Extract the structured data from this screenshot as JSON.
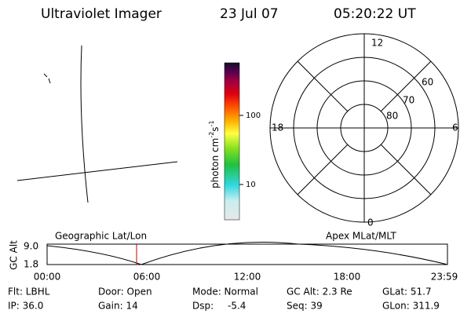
{
  "header": {
    "instrument": "Ultraviolet Imager",
    "date": "23 Jul 07",
    "time": "05:20:22 UT"
  },
  "colorbar": {
    "label_main": "photon cm",
    "exp1": "-2",
    "label_unit": "s",
    "exp2": "-1",
    "ticks": [
      "100",
      "10"
    ]
  },
  "polar": {
    "mlt_labels": [
      "12",
      "18",
      "6",
      "0"
    ],
    "lat_labels": [
      "60",
      "70",
      "80"
    ]
  },
  "timeline": {
    "left_title": "Geographic Lat/Lon",
    "right_title": "Apex MLat/MLT",
    "axis_label": "GC Alt",
    "y_labels": [
      "9.0",
      "1.8"
    ],
    "x_labels": [
      "00:00",
      "06:00",
      "12:00",
      "18:00",
      "23:59"
    ]
  },
  "footer": {
    "rows": [
      [
        "Flt: LBHL",
        "Door: Open",
        "Mode: Normal",
        "GC Alt: 2.3 Re",
        "GLat: 51.7"
      ],
      [
        "IP: 36.0",
        "Gain: 14",
        "Dsp:",
        "Seq: 39",
        "GLon: 311.9"
      ]
    ],
    "dsp_value": "-5.4"
  }
}
